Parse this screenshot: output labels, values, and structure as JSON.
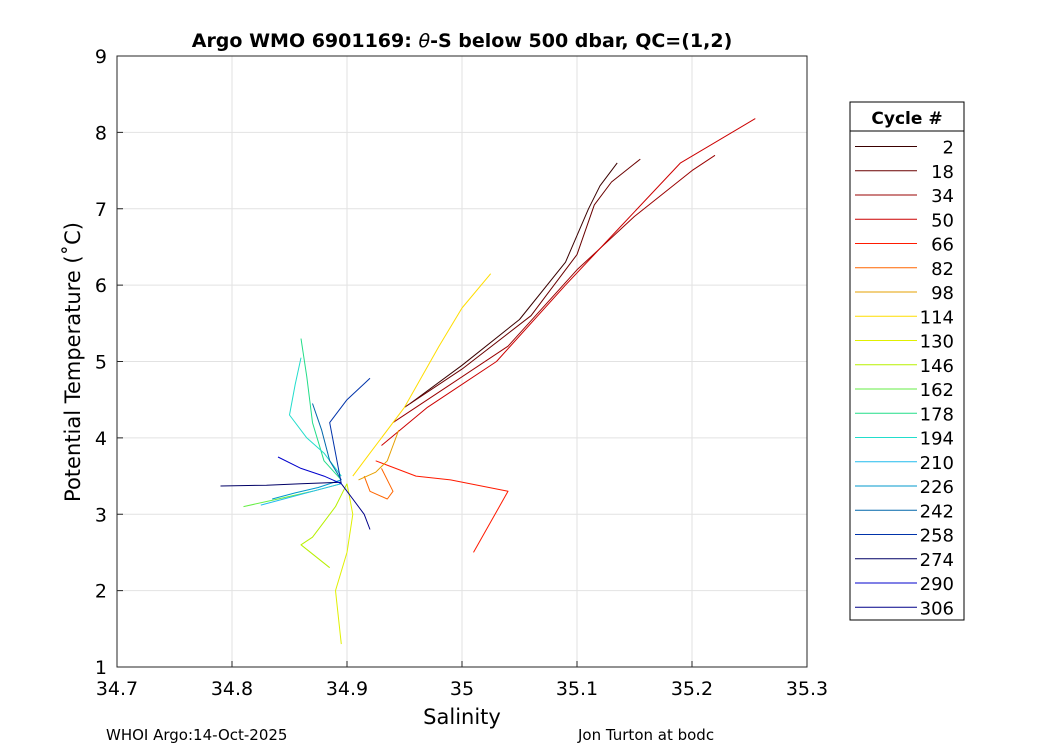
{
  "chart_data": {
    "type": "line",
    "title_prefix": "Argo WMO 6901169: ",
    "title_symbol": "θ",
    "title_suffix": "-S below 500 dbar,  QC=(1,2)",
    "xlabel": "Salinity",
    "ylabel": "Potential Temperature (˚C)",
    "xlim": [
      34.7,
      35.3
    ],
    "ylim": [
      1,
      9
    ],
    "xticks": [
      34.7,
      34.8,
      34.9,
      35.0,
      35.1,
      35.2,
      35.3
    ],
    "xtick_labels": [
      "34.7",
      "34.8",
      "34.9",
      "35",
      "35.1",
      "35.2",
      "35.3"
    ],
    "yticks": [
      1,
      2,
      3,
      4,
      5,
      6,
      7,
      8,
      9
    ],
    "ytick_labels": [
      "1",
      "2",
      "3",
      "4",
      "5",
      "6",
      "7",
      "8",
      "9"
    ],
    "grid": true,
    "legend_title": "Cycle #",
    "legend_position": "outside-right",
    "series": [
      {
        "name": "2",
        "color": "#3a0000",
        "x": [
          34.955,
          35.0,
          35.05,
          35.09,
          35.11,
          35.12,
          35.135
        ],
        "y": [
          4.45,
          4.95,
          5.55,
          6.3,
          7.0,
          7.3,
          7.6
        ]
      },
      {
        "name": "18",
        "color": "#6a0000",
        "x": [
          34.95,
          35.0,
          35.06,
          35.1,
          35.115,
          35.13,
          35.155
        ],
        "y": [
          4.4,
          4.9,
          5.6,
          6.4,
          7.05,
          7.35,
          7.65
        ]
      },
      {
        "name": "34",
        "color": "#9a0000",
        "x": [
          34.94,
          34.98,
          35.04,
          35.1,
          35.15,
          35.2,
          35.22
        ],
        "y": [
          4.2,
          4.6,
          5.2,
          6.2,
          6.9,
          7.5,
          7.7
        ]
      },
      {
        "name": "50",
        "color": "#cc0000",
        "x": [
          34.93,
          34.97,
          35.03,
          35.09,
          35.14,
          35.19,
          35.255
        ],
        "y": [
          3.9,
          4.4,
          5.0,
          6.0,
          6.8,
          7.6,
          8.18
        ]
      },
      {
        "name": "66",
        "color": "#ff1a00",
        "x": [
          34.925,
          34.96,
          34.99,
          35.04,
          35.01
        ],
        "y": [
          3.7,
          3.5,
          3.45,
          3.3,
          2.5
        ]
      },
      {
        "name": "82",
        "color": "#ff6600",
        "x": [
          34.93,
          34.94,
          34.935,
          34.92,
          34.915
        ],
        "y": [
          3.6,
          3.3,
          3.2,
          3.3,
          3.5
        ]
      },
      {
        "name": "98",
        "color": "#e6a000",
        "x": [
          34.91,
          34.925,
          34.935,
          34.94,
          34.945
        ],
        "y": [
          3.45,
          3.55,
          3.7,
          3.9,
          4.1
        ]
      },
      {
        "name": "114",
        "color": "#ffdd00",
        "x": [
          34.905,
          34.92,
          34.95,
          34.98,
          35.0,
          35.025
        ],
        "y": [
          3.5,
          3.8,
          4.4,
          5.2,
          5.7,
          6.15
        ]
      },
      {
        "name": "130",
        "color": "#e0f000",
        "x": [
          34.9,
          34.905,
          34.9,
          34.89,
          34.895
        ],
        "y": [
          3.4,
          3.0,
          2.5,
          2.0,
          1.3
        ]
      },
      {
        "name": "146",
        "color": "#b8f000",
        "x": [
          34.9,
          34.89,
          34.88,
          34.87,
          34.86,
          34.885
        ],
        "y": [
          3.4,
          3.1,
          2.9,
          2.7,
          2.6,
          2.3
        ]
      },
      {
        "name": "162",
        "color": "#66ee44",
        "x": [
          34.895,
          34.87,
          34.84,
          34.81
        ],
        "y": [
          3.4,
          3.3,
          3.2,
          3.1
        ]
      },
      {
        "name": "178",
        "color": "#22dd88",
        "x": [
          34.895,
          34.88,
          34.87,
          34.865,
          34.86
        ],
        "y": [
          3.45,
          3.7,
          4.2,
          4.8,
          5.3
        ]
      },
      {
        "name": "194",
        "color": "#22ddcc",
        "x": [
          34.895,
          34.88,
          34.865,
          34.85,
          34.855,
          34.86
        ],
        "y": [
          3.5,
          3.8,
          4.0,
          4.3,
          4.7,
          5.05
        ]
      },
      {
        "name": "210",
        "color": "#22bbee",
        "x": [
          34.895,
          34.87,
          34.845,
          34.825
        ],
        "y": [
          3.4,
          3.3,
          3.2,
          3.12
        ]
      },
      {
        "name": "226",
        "color": "#0099cc",
        "x": [
          34.895,
          34.875,
          34.855,
          34.835
        ],
        "y": [
          3.45,
          3.35,
          3.28,
          3.2
        ]
      },
      {
        "name": "242",
        "color": "#0066aa",
        "x": [
          34.895,
          34.885,
          34.878,
          34.87
        ],
        "y": [
          3.45,
          3.7,
          4.1,
          4.45
        ]
      },
      {
        "name": "258",
        "color": "#0033aa",
        "x": [
          34.895,
          34.89,
          34.885,
          34.9,
          34.92
        ],
        "y": [
          3.4,
          3.8,
          4.2,
          4.5,
          4.78
        ]
      },
      {
        "name": "274",
        "color": "#000066",
        "x": [
          34.895,
          34.86,
          34.83,
          34.79
        ],
        "y": [
          3.42,
          3.4,
          3.38,
          3.37
        ]
      },
      {
        "name": "290",
        "color": "#0000cc",
        "x": [
          34.895,
          34.88,
          34.86,
          34.84
        ],
        "y": [
          3.4,
          3.5,
          3.6,
          3.75
        ]
      },
      {
        "name": "306",
        "color": "#000088",
        "x": [
          34.895,
          34.905,
          34.915,
          34.92
        ],
        "y": [
          3.4,
          3.2,
          3.0,
          2.8
        ]
      }
    ]
  },
  "footer": {
    "left": "WHOI Argo:14-Oct-2025",
    "right": "Jon Turton at bodc"
  }
}
